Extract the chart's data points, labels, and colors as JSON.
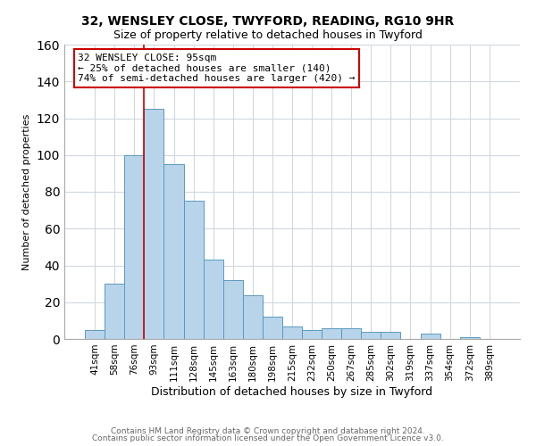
{
  "title": "32, WENSLEY CLOSE, TWYFORD, READING, RG10 9HR",
  "subtitle": "Size of property relative to detached houses in Twyford",
  "xlabel": "Distribution of detached houses by size in Twyford",
  "ylabel": "Number of detached properties",
  "bin_labels": [
    "41sqm",
    "58sqm",
    "76sqm",
    "93sqm",
    "111sqm",
    "128sqm",
    "145sqm",
    "163sqm",
    "180sqm",
    "198sqm",
    "215sqm",
    "232sqm",
    "250sqm",
    "267sqm",
    "285sqm",
    "302sqm",
    "319sqm",
    "337sqm",
    "354sqm",
    "372sqm",
    "389sqm"
  ],
  "bar_heights": [
    5,
    30,
    100,
    125,
    95,
    75,
    43,
    32,
    24,
    12,
    7,
    5,
    6,
    6,
    4,
    4,
    0,
    3,
    0,
    1,
    0
  ],
  "bar_color": "#b8d4ea",
  "bar_edge_color": "#5a9abe",
  "ylim": [
    0,
    160
  ],
  "yticks": [
    0,
    20,
    40,
    60,
    80,
    100,
    120,
    140,
    160
  ],
  "property_line_bin": 3,
  "annotation_title": "32 WENSLEY CLOSE: 95sqm",
  "annotation_line1": "← 25% of detached houses are smaller (140)",
  "annotation_line2": "74% of semi-detached houses are larger (420) →",
  "annotation_box_color": "#ffffff",
  "annotation_box_edge_color": "#cc0000",
  "property_line_color": "#cc0000",
  "footer1": "Contains HM Land Registry data © Crown copyright and database right 2024.",
  "footer2": "Contains public sector information licensed under the Open Government Licence v3.0.",
  "background_color": "#ffffff",
  "grid_color": "#d0d8e0",
  "title_fontsize": 10,
  "subtitle_fontsize": 9,
  "xlabel_fontsize": 9,
  "ylabel_fontsize": 8,
  "tick_fontsize": 7.5,
  "annotation_fontsize": 8,
  "footer_fontsize": 6.5
}
